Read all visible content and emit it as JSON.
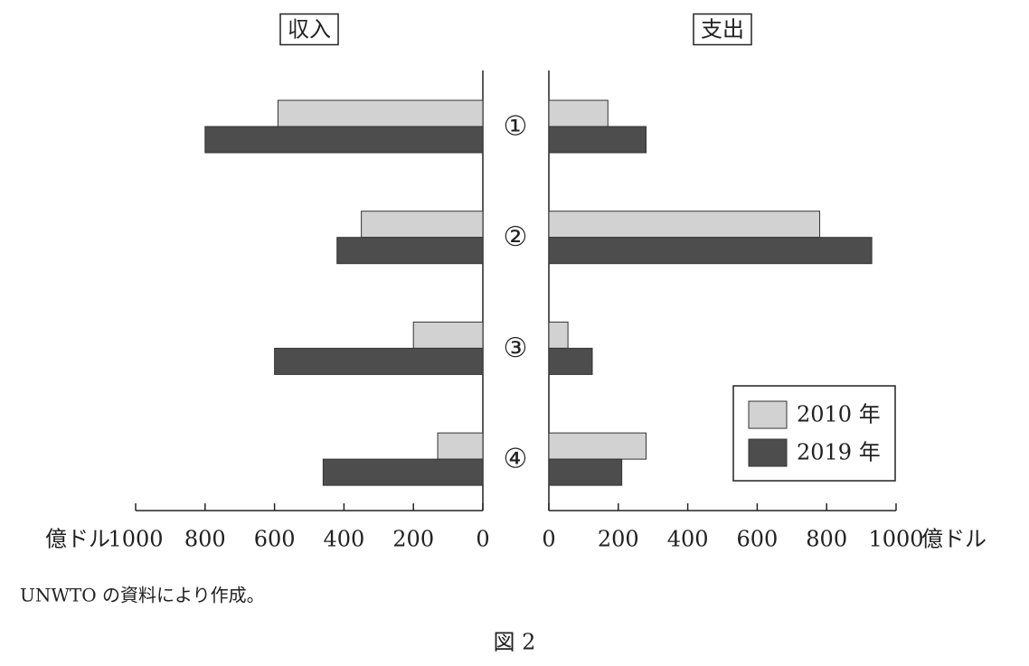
{
  "chart_data": [
    {
      "type": "bar",
      "orientation": "horizontal",
      "title": "収入",
      "xlabel": "億ドル",
      "categories": [
        "①",
        "②",
        "③",
        "④"
      ],
      "xlim": [
        0,
        1000
      ],
      "xticks": [
        0,
        200,
        400,
        600,
        800,
        1000
      ],
      "x_inverted": true,
      "series": [
        {
          "color": "#d2d2d2",
          "values": [
            590,
            350,
            200,
            130
          ]
        },
        {
          "color": "#4d4d4d",
          "values": [
            800,
            420,
            600,
            460
          ]
        }
      ]
    },
    {
      "type": "bar",
      "orientation": "horizontal",
      "title": "支出",
      "xlabel": "億ドル",
      "xlim": [
        0,
        1000
      ],
      "xticks": [
        0,
        200,
        400,
        600,
        800,
        1000
      ],
      "x_inverted": false,
      "legend": "lower right",
      "series": [
        {
          "name": "2010 年",
          "color": "#d2d2d2",
          "values": [
            170,
            780,
            55,
            280
          ]
        },
        {
          "name": "2019 年",
          "color": "#4d4d4d",
          "values": [
            280,
            930,
            125,
            210
          ]
        }
      ]
    }
  ],
  "source": "UNWTO の資料により作成。",
  "caption": "図 2"
}
